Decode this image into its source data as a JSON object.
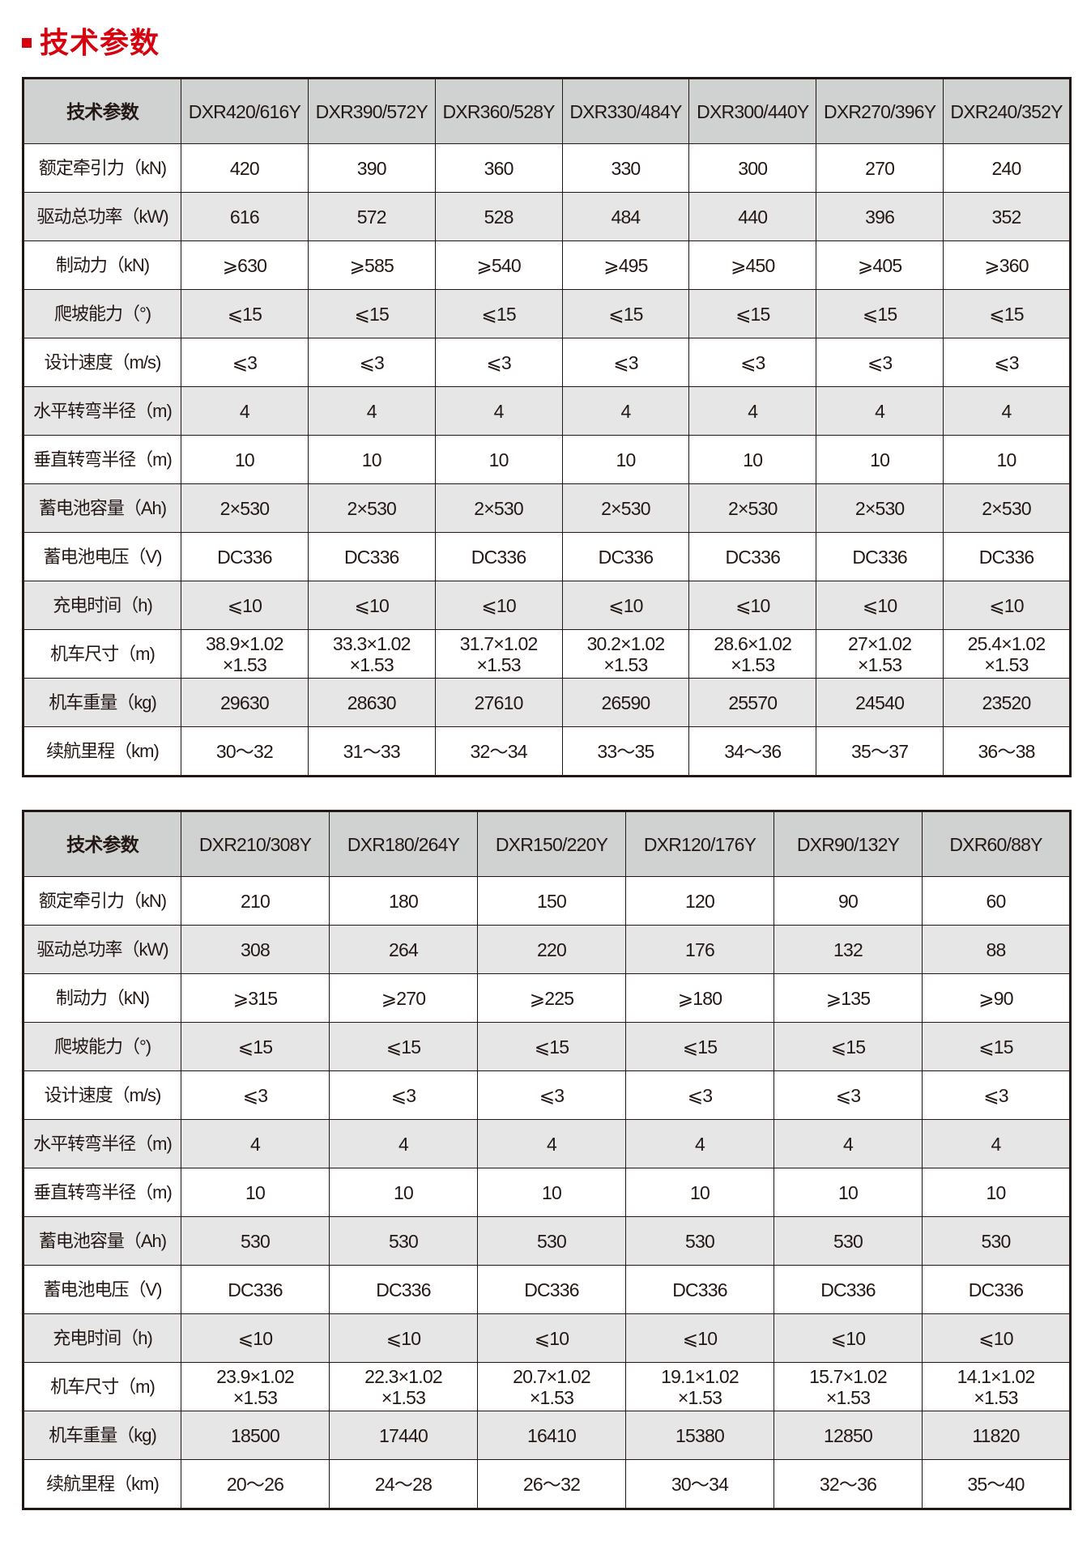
{
  "title": "技术参数",
  "colors": {
    "accent": "#d7000f",
    "header_bg": "#d0d1d1",
    "row_alt_bg": "#e6e6e6"
  },
  "tables": [
    {
      "header_label": "技术参数",
      "models": [
        "DXR420/616Y",
        "DXR390/572Y",
        "DXR360/528Y",
        "DXR330/484Y",
        "DXR300/440Y",
        "DXR270/396Y",
        "DXR240/352Y"
      ],
      "rows": [
        {
          "label": "额定牵引力（kN)",
          "values": [
            "420",
            "390",
            "360",
            "330",
            "300",
            "270",
            "240"
          ]
        },
        {
          "label": "驱动总功率（kW)",
          "values": [
            "616",
            "572",
            "528",
            "484",
            "440",
            "396",
            "352"
          ]
        },
        {
          "label": "制动力（kN)",
          "values": [
            "⩾630",
            "⩾585",
            "⩾540",
            "⩾495",
            "⩾450",
            "⩾405",
            "⩾360"
          ]
        },
        {
          "label": "爬坡能力（°)",
          "values": [
            "⩽15",
            "⩽15",
            "⩽15",
            "⩽15",
            "⩽15",
            "⩽15",
            "⩽15"
          ]
        },
        {
          "label": "设计速度（m/s)",
          "values": [
            "⩽3",
            "⩽3",
            "⩽3",
            "⩽3",
            "⩽3",
            "⩽3",
            "⩽3"
          ]
        },
        {
          "label": "水平转弯半径（m)",
          "values": [
            "4",
            "4",
            "4",
            "4",
            "4",
            "4",
            "4"
          ]
        },
        {
          "label": "垂直转弯半径（m)",
          "values": [
            "10",
            "10",
            "10",
            "10",
            "10",
            "10",
            "10"
          ]
        },
        {
          "label": "蓄电池容量（Ah)",
          "values": [
            "2×530",
            "2×530",
            "2×530",
            "2×530",
            "2×530",
            "2×530",
            "2×530"
          ]
        },
        {
          "label": "蓄电池电压（V)",
          "values": [
            "DC336",
            "DC336",
            "DC336",
            "DC336",
            "DC336",
            "DC336",
            "DC336"
          ]
        },
        {
          "label": "充电时间（h)",
          "values": [
            "⩽10",
            "⩽10",
            "⩽10",
            "⩽10",
            "⩽10",
            "⩽10",
            "⩽10"
          ]
        },
        {
          "label": "机车尺寸（m)",
          "values": [
            "38.9×1.02\n×1.53",
            "33.3×1.02\n×1.53",
            "31.7×1.02\n×1.53",
            "30.2×1.02\n×1.53",
            "28.6×1.02\n×1.53",
            "27×1.02\n×1.53",
            "25.4×1.02\n×1.53"
          ]
        },
        {
          "label": "机车重量（kg)",
          "values": [
            "29630",
            "28630",
            "27610",
            "26590",
            "25570",
            "24540",
            "23520"
          ]
        },
        {
          "label": "续航里程（km)",
          "values": [
            "30～32",
            "31～33",
            "32～34",
            "33～35",
            "34～36",
            "35～37",
            "36～38"
          ]
        }
      ]
    },
    {
      "header_label": "技术参数",
      "models": [
        "DXR210/308Y",
        "DXR180/264Y",
        "DXR150/220Y",
        "DXR120/176Y",
        "DXR90/132Y",
        "DXR60/88Y"
      ],
      "rows": [
        {
          "label": "额定牵引力（kN)",
          "values": [
            "210",
            "180",
            "150",
            "120",
            "90",
            "60"
          ]
        },
        {
          "label": "驱动总功率（kW)",
          "values": [
            "308",
            "264",
            "220",
            "176",
            "132",
            "88"
          ]
        },
        {
          "label": "制动力（kN)",
          "values": [
            "⩾315",
            "⩾270",
            "⩾225",
            "⩾180",
            "⩾135",
            "⩾90"
          ]
        },
        {
          "label": "爬坡能力（°)",
          "values": [
            "⩽15",
            "⩽15",
            "⩽15",
            "⩽15",
            "⩽15",
            "⩽15"
          ]
        },
        {
          "label": "设计速度（m/s)",
          "values": [
            "⩽3",
            "⩽3",
            "⩽3",
            "⩽3",
            "⩽3",
            "⩽3"
          ]
        },
        {
          "label": "水平转弯半径（m)",
          "values": [
            "4",
            "4",
            "4",
            "4",
            "4",
            "4"
          ]
        },
        {
          "label": "垂直转弯半径（m)",
          "values": [
            "10",
            "10",
            "10",
            "10",
            "10",
            "10"
          ]
        },
        {
          "label": "蓄电池容量（Ah)",
          "values": [
            "530",
            "530",
            "530",
            "530",
            "530",
            "530"
          ]
        },
        {
          "label": "蓄电池电压（V)",
          "values": [
            "DC336",
            "DC336",
            "DC336",
            "DC336",
            "DC336",
            "DC336"
          ]
        },
        {
          "label": "充电时间（h)",
          "values": [
            "⩽10",
            "⩽10",
            "⩽10",
            "⩽10",
            "⩽10",
            "⩽10"
          ]
        },
        {
          "label": "机车尺寸（m)",
          "values": [
            "23.9×1.02\n×1.53",
            "22.3×1.02\n×1.53",
            "20.7×1.02\n×1.53",
            "19.1×1.02\n×1.53",
            "15.7×1.02\n×1.53",
            "14.1×1.02\n×1.53"
          ]
        },
        {
          "label": "机车重量（kg)",
          "values": [
            "18500",
            "17440",
            "16410",
            "15380",
            "12850",
            "11820"
          ]
        },
        {
          "label": "续航里程（km)",
          "values": [
            "20～26",
            "24～28",
            "26～32",
            "30～34",
            "32～36",
            "35～40"
          ]
        }
      ]
    }
  ]
}
